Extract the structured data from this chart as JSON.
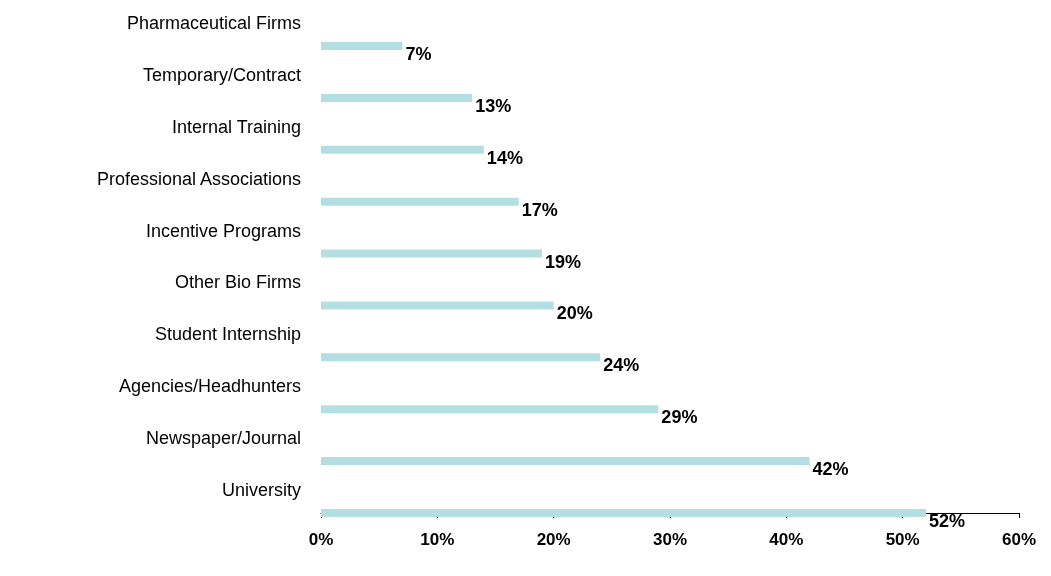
{
  "chart_data": {
    "type": "bar",
    "orientation": "horizontal",
    "categories": [
      "Pharmaceutical Firms",
      "Temporary/Contract",
      "Internal Training",
      "Professional Associations",
      "Incentive Programs",
      "Other Bio Firms",
      "Student Internship",
      "Agencies/Headhunters",
      "Newspaper/Journal",
      "University"
    ],
    "values": [
      7,
      13,
      14,
      17,
      19,
      20,
      24,
      29,
      42,
      52
    ],
    "value_labels": [
      "7%",
      "13%",
      "14%",
      "17%",
      "19%",
      "20%",
      "24%",
      "29%",
      "42%",
      "52%"
    ],
    "color": "#b4dfe2",
    "xlim": [
      0,
      60
    ],
    "xticks": [
      {
        "value": 0,
        "label": "0%"
      },
      {
        "value": 10,
        "label": "10%"
      },
      {
        "value": 20,
        "label": "20%"
      },
      {
        "value": 30,
        "label": "30%"
      },
      {
        "value": 40,
        "label": "40%"
      },
      {
        "value": 50,
        "label": "50%"
      },
      {
        "value": 60,
        "label": "60%"
      }
    ],
    "grid": false
  }
}
